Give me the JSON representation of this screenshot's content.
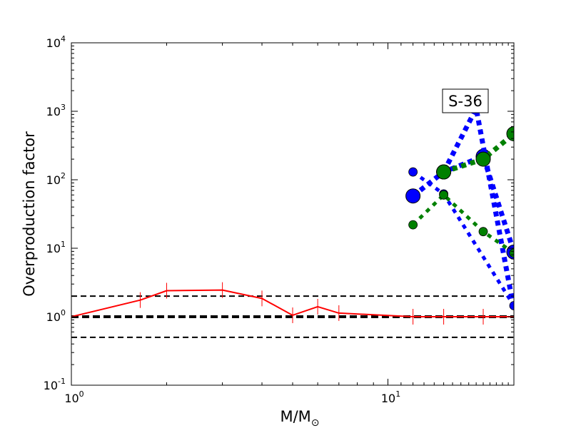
{
  "chart_data": {
    "type": "line",
    "title": "",
    "xlabel": "M/M",
    "xlabel_sub": "⊙",
    "ylabel": "Overproduction factor",
    "annotation": "S-36",
    "xscale": "log",
    "yscale": "log",
    "xlim": [
      1,
      25
    ],
    "ylim": [
      0.1,
      10000
    ],
    "xticks": [
      {
        "value": 1,
        "base": "10",
        "exp": "0"
      },
      {
        "value": 10,
        "base": "10",
        "exp": "1"
      }
    ],
    "yticks": [
      {
        "value": 0.1,
        "base": "10",
        "exp": "-1"
      },
      {
        "value": 1,
        "base": "10",
        "exp": "0"
      },
      {
        "value": 10,
        "base": "10",
        "exp": "1"
      },
      {
        "value": 100,
        "base": "10",
        "exp": "2"
      },
      {
        "value": 1000,
        "base": "10",
        "exp": "3"
      },
      {
        "value": 10000,
        "base": "10",
        "exp": "4"
      }
    ],
    "reference_lines": [
      {
        "y": 2.0,
        "style": "dashed",
        "weight": "thin",
        "color": "#000000"
      },
      {
        "y": 1.0,
        "style": "dashed",
        "weight": "thick",
        "color": "#000000"
      },
      {
        "y": 0.5,
        "style": "dashed",
        "weight": "thin",
        "color": "#000000"
      }
    ],
    "series": [
      {
        "color": "#ff0000",
        "style": "solid",
        "markers": "plus",
        "points": [
          [
            1,
            1.0
          ],
          [
            1.65,
            1.75
          ],
          [
            2,
            2.4
          ],
          [
            3,
            2.45
          ],
          [
            4,
            1.85
          ],
          [
            5,
            1.05
          ],
          [
            6,
            1.4
          ],
          [
            7,
            1.13
          ],
          [
            12,
            1.0
          ],
          [
            15,
            1.0
          ],
          [
            20,
            1.0
          ],
          [
            25,
            1.0
          ]
        ]
      },
      {
        "color": "#0000ff",
        "style": "dotted",
        "markers": "circle-small",
        "points": [
          [
            12,
            130
          ],
          [
            15,
            62
          ],
          [
            25,
            1.45
          ]
        ]
      },
      {
        "color": "#0000ff",
        "style": "dotted",
        "markers": "circle-large",
        "points": [
          [
            12,
            58
          ],
          [
            15,
            130
          ],
          [
            20,
            220
          ],
          [
            25,
            8.8
          ]
        ]
      },
      {
        "color": "#0000ff",
        "style": "dotted",
        "markers": "none",
        "points": [
          [
            15,
            130
          ],
          [
            19,
            1100
          ],
          [
            25,
            1.3
          ]
        ]
      },
      {
        "color": "#008000",
        "style": "dotted",
        "markers": "circle-small",
        "points": [
          [
            12,
            22
          ],
          [
            15,
            60
          ],
          [
            20,
            17.5
          ],
          [
            25,
            8.5
          ]
        ]
      },
      {
        "color": "#008000",
        "style": "dotted",
        "markers": "circle-large",
        "points": [
          [
            15,
            130
          ],
          [
            20,
            200
          ],
          [
            25,
            470
          ]
        ]
      }
    ]
  }
}
